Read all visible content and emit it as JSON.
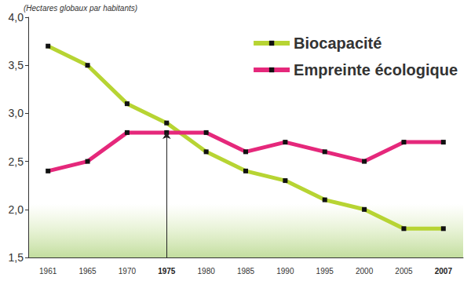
{
  "chart_data": {
    "type": "line",
    "y_label": "(Hectares globaux par habitants)",
    "categories": [
      "1961",
      "1965",
      "1970",
      "1975",
      "1980",
      "1985",
      "1990",
      "1995",
      "2000",
      "2005",
      "2007"
    ],
    "series": [
      {
        "name": "Biocapacité",
        "color": "#b7d433",
        "marker": "square",
        "values": [
          3.7,
          3.5,
          3.1,
          2.9,
          2.6,
          2.4,
          2.3,
          2.1,
          2.0,
          1.8,
          1.8
        ]
      },
      {
        "name": "Empreinte écologique",
        "color": "#e5287b",
        "marker": "square",
        "values": [
          2.4,
          2.5,
          2.8,
          2.8,
          2.8,
          2.6,
          2.7,
          2.6,
          2.5,
          2.7,
          2.7
        ]
      }
    ],
    "ylim": [
      1.5,
      4.0
    ],
    "yticks": [
      {
        "value": 1.5,
        "label": "1,5"
      },
      {
        "value": 2.0,
        "label": "2,0"
      },
      {
        "value": 2.5,
        "label": "2,5"
      },
      {
        "value": 3.0,
        "label": "3,0"
      },
      {
        "value": 3.5,
        "label": "3,5"
      },
      {
        "value": 4.0,
        "label": "4,0"
      }
    ],
    "grid": false,
    "legend": "upper right"
  }
}
